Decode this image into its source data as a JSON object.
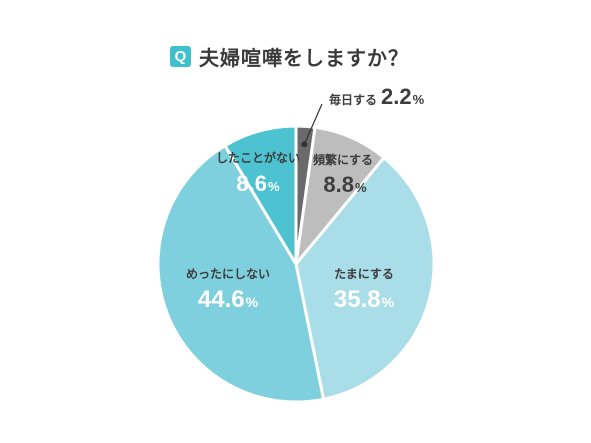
{
  "title": {
    "badge": "Q",
    "text": "夫婦喧嘩をしますか？"
  },
  "colors": {
    "badge": "#3fc1cc",
    "dark_text": "#3d3d3d",
    "white_text": "#ffffff",
    "slice_border": "#ffffff"
  },
  "chart_data": {
    "type": "pie",
    "start_angle_deg": 0,
    "direction": "clockwise",
    "unit": "%",
    "slices": [
      {
        "label": "毎日する",
        "value": 2.2,
        "color": "#6a6a6a",
        "value_text": "2.2"
      },
      {
        "label": "頻繁にする",
        "value": 8.8,
        "color": "#bdbdbd",
        "value_text": "8.8"
      },
      {
        "label": "たまにする",
        "value": 35.8,
        "color": "#a9dee8",
        "value_text": "35.8"
      },
      {
        "label": "めったにしない",
        "value": 44.6,
        "color": "#7fd0de",
        "value_text": "44.6"
      },
      {
        "label": "したことがない",
        "value": 8.6,
        "color": "#4dc3d2",
        "value_text": "8.6"
      }
    ]
  }
}
